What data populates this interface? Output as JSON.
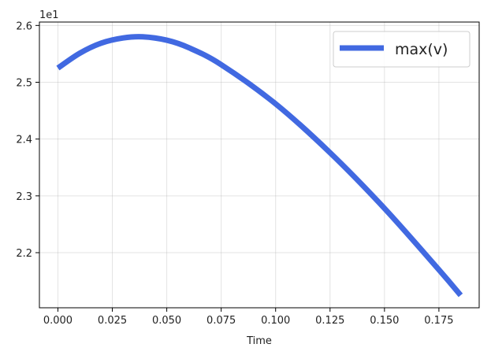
{
  "chart_data": {
    "type": "line",
    "title": "",
    "xlabel": "Time",
    "ylabel": "",
    "y_offset_label": "1e1",
    "xlim": [
      -0.0085,
      0.1935
    ],
    "ylim": [
      21.03,
      26.06
    ],
    "xticks": [
      0.0,
      0.025,
      0.05,
      0.075,
      0.1,
      0.125,
      0.15,
      0.175
    ],
    "xtick_labels": [
      "0.000",
      "0.025",
      "0.050",
      "0.075",
      "0.100",
      "0.125",
      "0.150",
      "0.175"
    ],
    "yticks": [
      22.0,
      23.0,
      24.0,
      25.0,
      26.0
    ],
    "ytick_labels": [
      "2.2",
      "2.3",
      "2.4",
      "2.5",
      "2.6"
    ],
    "grid": true,
    "legend_position": "top-right",
    "series": [
      {
        "name": "max(v)",
        "color": "#4169e1",
        "x": [
          0.0,
          0.01,
          0.02,
          0.03,
          0.039,
          0.05,
          0.06,
          0.075,
          0.1,
          0.125,
          0.15,
          0.175,
          0.185
        ],
        "y": [
          25.25,
          25.51,
          25.69,
          25.78,
          25.8,
          25.74,
          25.61,
          25.31,
          24.62,
          23.76,
          22.78,
          21.7,
          21.25
        ]
      }
    ]
  }
}
